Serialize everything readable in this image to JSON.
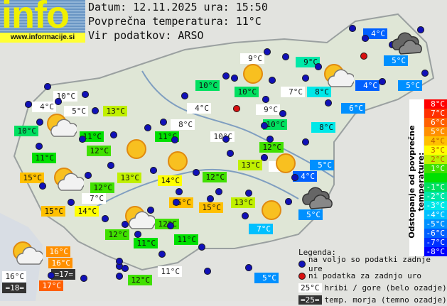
{
  "header": {
    "logo_text": "info",
    "logo_url": "www.informacije.si",
    "date_line": "Datum: 12.11.2025 ura: 15:50",
    "avg_line": "Povprečna temperatura: 11°C",
    "source_line": "Vir podatkov: ARSO"
  },
  "scale": {
    "title": "Odstopanje od povprečne temperature:",
    "steps": [
      {
        "label": "8°C",
        "color": "#ff0000"
      },
      {
        "label": "7°C",
        "color": "#ff3000"
      },
      {
        "label": "6°C",
        "color": "#ff6000"
      },
      {
        "label": "5°C",
        "color": "#ff9000"
      },
      {
        "label": "4°C",
        "color": "#ffc000"
      },
      {
        "label": "3°C",
        "color": "#ffff00"
      },
      {
        "label": "2°C",
        "color": "#c0f000"
      },
      {
        "label": "1°C",
        "color": "#40e000"
      },
      {
        "label": "",
        "color": "#00e000"
      },
      {
        "label": "-1°C",
        "color": "#00e060"
      },
      {
        "label": "-2°C",
        "color": "#00e8a8"
      },
      {
        "label": "-3°C",
        "color": "#00e8e8"
      },
      {
        "label": "-4°C",
        "color": "#00c0ff"
      },
      {
        "label": "-5°C",
        "color": "#0090ff"
      },
      {
        "label": "-6°C",
        "color": "#0060ff"
      },
      {
        "label": "-7°C",
        "color": "#0030ff"
      },
      {
        "label": "-8°C",
        "color": "#0000ff"
      }
    ]
  },
  "legend": {
    "title": "Legenda:",
    "available": "na voljo so podatki zadnje ure",
    "missing": "ni podatka za zadnjo uro",
    "mountain_sample": "25°C",
    "mountain": "hribi / gore (belo ozadje)",
    "sea_sample": "=25=",
    "sea": "temp. morja (temno ozadje)"
  },
  "labels": [
    {
      "t": "4°C",
      "c": "#0060ff"
    },
    {
      "t": "9°C",
      "c": "white"
    },
    {
      "t": "9°C",
      "c": "#00e8a8"
    },
    {
      "t": "5°C",
      "c": "#0090ff"
    },
    {
      "t": "10°C",
      "c": "#00e060"
    },
    {
      "t": "10°C",
      "c": "#00e060"
    },
    {
      "t": "7°C",
      "c": "white"
    },
    {
      "t": "8°C",
      "c": "#00e8e8"
    },
    {
      "t": "4°C",
      "c": "#0060ff"
    },
    {
      "t": "5°C",
      "c": "#0090ff"
    },
    {
      "t": "10°C",
      "c": "white"
    },
    {
      "t": "4°C",
      "c": "white"
    },
    {
      "t": "5°C",
      "c": "white"
    },
    {
      "t": "13°C",
      "c": "#c0f000"
    },
    {
      "t": "4°C",
      "c": "white"
    },
    {
      "t": "9°C",
      "c": "white"
    },
    {
      "t": "6°C",
      "c": "#0090ff"
    },
    {
      "t": "10°C",
      "c": "#00e060"
    },
    {
      "t": "8°C",
      "c": "white"
    },
    {
      "t": "10°C",
      "c": "#00e060"
    },
    {
      "t": "8°C",
      "c": "#00e8e8"
    },
    {
      "t": "11°C",
      "c": "#00e000"
    },
    {
      "t": "11°C",
      "c": "#00e000"
    },
    {
      "t": "10°C",
      "c": "white"
    },
    {
      "t": "12°C",
      "c": "#40e000"
    },
    {
      "t": "12°C",
      "c": "#40e000"
    },
    {
      "t": "11°C",
      "c": "#00e000"
    },
    {
      "t": "13°C",
      "c": "#c0f000"
    },
    {
      "t": "9°C",
      "c": "white"
    },
    {
      "t": "5°C",
      "c": "#0090ff"
    },
    {
      "t": "15°C",
      "c": "#ffc000"
    },
    {
      "t": "13°C",
      "c": "#c0f000"
    },
    {
      "t": "14°C",
      "c": "#ffff00"
    },
    {
      "t": "12°C",
      "c": "#40e000"
    },
    {
      "t": "4°C",
      "c": "#0060ff"
    },
    {
      "t": "12°C",
      "c": "#40e000"
    },
    {
      "t": "7°C",
      "c": "white"
    },
    {
      "t": "15°C",
      "c": "#ffc000"
    },
    {
      "t": "13°C",
      "c": "#c0f000"
    },
    {
      "t": "15°C",
      "c": "#ffc000"
    },
    {
      "t": "14°C",
      "c": "#ffff00"
    },
    {
      "t": "15°C",
      "c": "#ffc000"
    },
    {
      "t": "5°C",
      "c": "#0090ff"
    },
    {
      "t": "12°C",
      "c": "#40e000"
    },
    {
      "t": "7°C",
      "c": "#00c0ff"
    },
    {
      "t": "12°C",
      "c": "#40e000"
    },
    {
      "t": "11°C",
      "c": "#00e000"
    },
    {
      "t": "11°C",
      "c": "#00e000"
    },
    {
      "t": "16°C",
      "c": "#ff9000"
    },
    {
      "t": "16°C",
      "c": "#ff9000"
    },
    {
      "t": "16°C",
      "c": "white"
    },
    {
      "t": "=17=",
      "c": "dark"
    },
    {
      "t": "11°C",
      "c": "white"
    },
    {
      "t": "=18=",
      "c": "dark"
    },
    {
      "t": "17°C",
      "c": "#ff6000"
    },
    {
      "t": "12°C",
      "c": "#40e000"
    },
    {
      "t": "5°C",
      "c": "#0090ff"
    }
  ],
  "icons": [
    "cloud",
    "sun-cloud",
    "sun",
    "sun-cloud",
    "sun",
    "sun",
    "sun",
    "sun-cloud",
    "sun-cloud",
    "sun",
    "cloud",
    "sun-cloud"
  ]
}
